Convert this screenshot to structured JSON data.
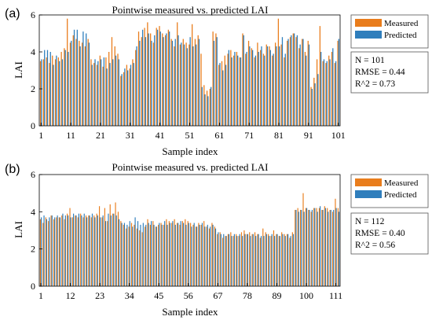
{
  "colors": {
    "measured": "#E97D1C",
    "predicted": "#2F7EBC"
  },
  "chart_data": [
    {
      "type": "bar",
      "panel_label": "(a)",
      "title": "Pointwise measured vs. predicted LAI",
      "xlabel": "Sample index",
      "ylabel": "LAI",
      "ylim": [
        0,
        6
      ],
      "yticks": [
        0,
        2,
        4,
        6
      ],
      "xticks": [
        1,
        11,
        21,
        31,
        41,
        51,
        61,
        71,
        81,
        91,
        101
      ],
      "legend": {
        "placement": "outside-right",
        "entries": [
          "Measured",
          "Predicted"
        ]
      },
      "stats": [
        "N = 101",
        "RMSE = 0.44",
        "R^2 = 0.73"
      ],
      "x": [
        1,
        2,
        3,
        4,
        5,
        6,
        7,
        8,
        9,
        10,
        11,
        12,
        13,
        14,
        15,
        16,
        17,
        18,
        19,
        20,
        21,
        22,
        23,
        24,
        25,
        26,
        27,
        28,
        29,
        30,
        31,
        32,
        33,
        34,
        35,
        36,
        37,
        38,
        39,
        40,
        41,
        42,
        43,
        44,
        45,
        46,
        47,
        48,
        49,
        50,
        51,
        52,
        53,
        54,
        55,
        56,
        57,
        58,
        59,
        60,
        61,
        62,
        63,
        64,
        65,
        66,
        67,
        68,
        69,
        70,
        71,
        72,
        73,
        74,
        75,
        76,
        77,
        78,
        79,
        80,
        81,
        82,
        83,
        84,
        85,
        86,
        87,
        88,
        89,
        90,
        91,
        92,
        93,
        94,
        95,
        96,
        97,
        98,
        99,
        100,
        101
      ],
      "series": [
        {
          "name": "Measured",
          "values": [
            3.5,
            3.6,
            3.7,
            3.4,
            3.8,
            3.6,
            3.7,
            4.0,
            4.2,
            5.8,
            4.5,
            4.9,
            4.7,
            4.6,
            4.5,
            4.3,
            4.7,
            3.6,
            3.4,
            3.3,
            3.8,
            3.2,
            3.7,
            4.0,
            4.8,
            4.3,
            3.9,
            2.7,
            2.9,
            3.3,
            3.1,
            3.6,
            4.1,
            5.1,
            4.8,
            5.3,
            5.6,
            5.0,
            4.5,
            5.3,
            5.4,
            5.0,
            4.9,
            5.2,
            4.7,
            4.3,
            5.6,
            4.4,
            4.7,
            4.5,
            4.4,
            5.5,
            4.7,
            4.9,
            3.9,
            2.2,
            1.9,
            2.0,
            5.1,
            5.0,
            3.3,
            3.5,
            3.8,
            3.9,
            4.1,
            3.8,
            4.0,
            3.7,
            5.0,
            3.9,
            4.6,
            4.2,
            3.7,
            4.5,
            4.1,
            3.9,
            4.4,
            4.3,
            3.8,
            4.5,
            5.8,
            4.4,
            3.7,
            4.6,
            4.8,
            5.0,
            4.8,
            4.2,
            4.7,
            4.0,
            4.6,
            2.1,
            2.6,
            3.6,
            5.4,
            3.5,
            3.4,
            3.8,
            4.0,
            3.4,
            4.6
          ]
        },
        {
          "name": "Predicted",
          "values": [
            3.6,
            4.1,
            4.1,
            4.0,
            3.3,
            3.8,
            3.5,
            3.6,
            4.1,
            4.0,
            4.6,
            5.2,
            5.2,
            4.3,
            5.1,
            5.0,
            4.5,
            3.3,
            3.6,
            3.5,
            3.6,
            3.7,
            3.1,
            3.4,
            3.6,
            3.8,
            3.6,
            2.8,
            3.1,
            3.0,
            3.3,
            3.4,
            4.3,
            4.6,
            5.2,
            4.8,
            5.0,
            4.6,
            4.9,
            5.2,
            5.1,
            4.8,
            5.0,
            5.1,
            4.6,
            4.7,
            4.9,
            4.5,
            4.4,
            4.2,
            4.8,
            4.3,
            4.4,
            4.7,
            2.1,
            1.7,
            1.6,
            2.1,
            4.6,
            4.8,
            3.4,
            3.0,
            3.3,
            4.1,
            3.7,
            4.0,
            3.8,
            3.7,
            4.9,
            4.0,
            4.3,
            4.1,
            3.8,
            4.0,
            4.3,
            3.8,
            4.3,
            4.1,
            3.9,
            4.3,
            4.3,
            4.8,
            3.9,
            4.7,
            4.9,
            5.0,
            4.9,
            4.4,
            4.7,
            3.8,
            4.4,
            2.0,
            2.3,
            2.8,
            4.0,
            3.6,
            3.5,
            3.6,
            4.2,
            3.5,
            4.7
          ]
        }
      ]
    },
    {
      "type": "bar",
      "panel_label": "(b)",
      "title": "Pointwise measured vs. predicted LAI",
      "xlabel": "Sample index",
      "ylabel": "LAI",
      "ylim": [
        0,
        6
      ],
      "yticks": [
        0,
        2,
        4,
        6
      ],
      "xticks": [
        1,
        12,
        23,
        34,
        45,
        56,
        67,
        78,
        89,
        100,
        111
      ],
      "legend": {
        "placement": "outside-right",
        "entries": [
          "Measured",
          "Predicted"
        ]
      },
      "stats": [
        "N = 112",
        "RMSE = 0.40",
        "R^2 = 0.56"
      ],
      "x": [
        1,
        2,
        3,
        4,
        5,
        6,
        7,
        8,
        9,
        10,
        11,
        12,
        13,
        14,
        15,
        16,
        17,
        18,
        19,
        20,
        21,
        22,
        23,
        24,
        25,
        26,
        27,
        28,
        29,
        30,
        31,
        32,
        33,
        34,
        35,
        36,
        37,
        38,
        39,
        40,
        41,
        42,
        43,
        44,
        45,
        46,
        47,
        48,
        49,
        50,
        51,
        52,
        53,
        54,
        55,
        56,
        57,
        58,
        59,
        60,
        61,
        62,
        63,
        64,
        65,
        66,
        67,
        68,
        69,
        70,
        71,
        72,
        73,
        74,
        75,
        76,
        77,
        78,
        79,
        80,
        81,
        82,
        83,
        84,
        85,
        86,
        87,
        88,
        89,
        90,
        91,
        92,
        93,
        94,
        95,
        96,
        97,
        98,
        99,
        100,
        101,
        102,
        103,
        104,
        105,
        106,
        107,
        108,
        109,
        110,
        111,
        112
      ],
      "series": [
        {
          "name": "Measured",
          "values": [
            3.6,
            3.4,
            3.7,
            3.5,
            3.8,
            3.6,
            3.7,
            3.7,
            3.8,
            3.6,
            3.9,
            4.2,
            3.7,
            3.8,
            3.7,
            3.9,
            3.7,
            3.8,
            3.8,
            3.7,
            3.8,
            3.9,
            4.3,
            3.7,
            4.2,
            3.5,
            4.4,
            3.9,
            4.5,
            4.0,
            3.5,
            3.3,
            3.1,
            3.2,
            3.4,
            3.3,
            3.1,
            3.0,
            2.9,
            3.2,
            3.6,
            3.3,
            3.5,
            3.2,
            3.3,
            3.4,
            3.3,
            3.6,
            3.5,
            3.4,
            3.6,
            3.4,
            3.3,
            3.5,
            3.6,
            3.5,
            3.4,
            3.3,
            3.2,
            3.4,
            3.3,
            3.5,
            3.2,
            3.1,
            3.4,
            3.2,
            2.8,
            2.9,
            2.6,
            2.7,
            2.8,
            2.9,
            2.7,
            2.8,
            2.7,
            2.9,
            3.0,
            2.8,
            2.9,
            2.8,
            2.9,
            2.8,
            2.6,
            3.1,
            2.9,
            2.8,
            2.7,
            3.0,
            2.8,
            2.7,
            2.9,
            2.8,
            2.8,
            2.6,
            2.9,
            4.1,
            4.2,
            4.1,
            5.0,
            4.2,
            4.1,
            4.0,
            4.2,
            4.2,
            4.2,
            4.1,
            4.3,
            4.2,
            4.1,
            4.0,
            4.7,
            4.2
          ]
        },
        {
          "name": "Predicted",
          "values": [
            3.7,
            3.8,
            3.6,
            3.7,
            3.8,
            3.7,
            3.8,
            3.7,
            3.9,
            3.8,
            3.8,
            3.7,
            3.9,
            3.8,
            3.9,
            3.8,
            3.9,
            3.7,
            3.8,
            3.9,
            3.7,
            3.8,
            3.7,
            3.8,
            3.5,
            3.9,
            3.8,
            3.9,
            3.8,
            3.6,
            3.4,
            3.4,
            3.3,
            3.5,
            3.2,
            3.7,
            3.5,
            3.3,
            3.4,
            3.3,
            3.4,
            3.5,
            3.3,
            3.2,
            3.4,
            3.3,
            3.5,
            3.3,
            3.4,
            3.5,
            3.3,
            3.4,
            3.5,
            3.4,
            3.3,
            3.4,
            3.2,
            3.4,
            3.2,
            3.3,
            3.4,
            3.2,
            3.3,
            3.2,
            3.3,
            3.1,
            2.9,
            2.8,
            2.8,
            2.7,
            2.8,
            2.7,
            2.8,
            2.7,
            2.8,
            2.7,
            2.8,
            2.8,
            2.7,
            2.8,
            2.7,
            2.8,
            2.7,
            2.7,
            2.8,
            2.7,
            2.8,
            2.7,
            2.8,
            2.7,
            2.8,
            2.7,
            2.8,
            2.7,
            2.8,
            4.1,
            4.0,
            4.1,
            4.0,
            4.2,
            4.1,
            4.1,
            4.2,
            4.0,
            4.3,
            4.1,
            4.2,
            4.0,
            4.1,
            4.1,
            4.2,
            4.0
          ]
        }
      ]
    }
  ]
}
